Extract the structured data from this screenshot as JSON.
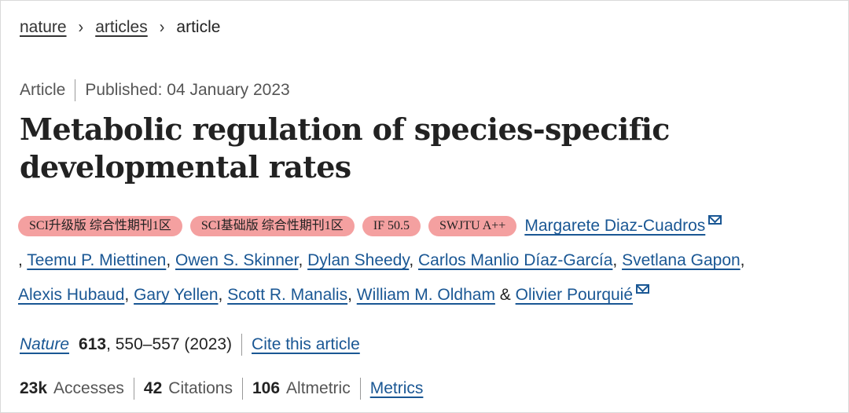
{
  "breadcrumb": {
    "items": [
      "nature",
      "articles"
    ],
    "current": "article",
    "separator": "›"
  },
  "meta": {
    "type": "Article",
    "published": "Published: 04 January 2023"
  },
  "title": {
    "line1": "Metabolic regulation of species-specific",
    "line2": "developmental rates"
  },
  "badges": [
    "SCI升级版 综合性期刊1区",
    "SCI基础版 综合性期刊1区",
    "IF 50.5",
    "SWJTU A++"
  ],
  "authors": [
    "Margarete Diaz-Cuadros",
    "Teemu P. Miettinen",
    "Owen S. Skinner",
    "Dylan Sheedy",
    "Carlos Manlio Díaz-García",
    "Svetlana Gapon",
    "Alexis Hubaud",
    "Gary Yellen",
    "Scott R. Manalis",
    "William M. Oldham",
    "Olivier Pourquié"
  ],
  "author_separators": {
    "comma": ", ",
    "leading_comma": ", ",
    "ampersand": " & "
  },
  "journal": {
    "name": "Nature",
    "volume": "613",
    "pages": ", 550–557 (2023)",
    "cite_label": "Cite this article"
  },
  "metrics": {
    "accesses_value": "23k",
    "accesses_label": "Accesses",
    "citations_value": "42",
    "citations_label": "Citations",
    "altmetric_value": "106",
    "altmetric_label": "Altmetric",
    "metrics_link": "Metrics"
  },
  "colors": {
    "link": "#1a5794",
    "badge": "#f4a0a0",
    "text": "#222222"
  }
}
